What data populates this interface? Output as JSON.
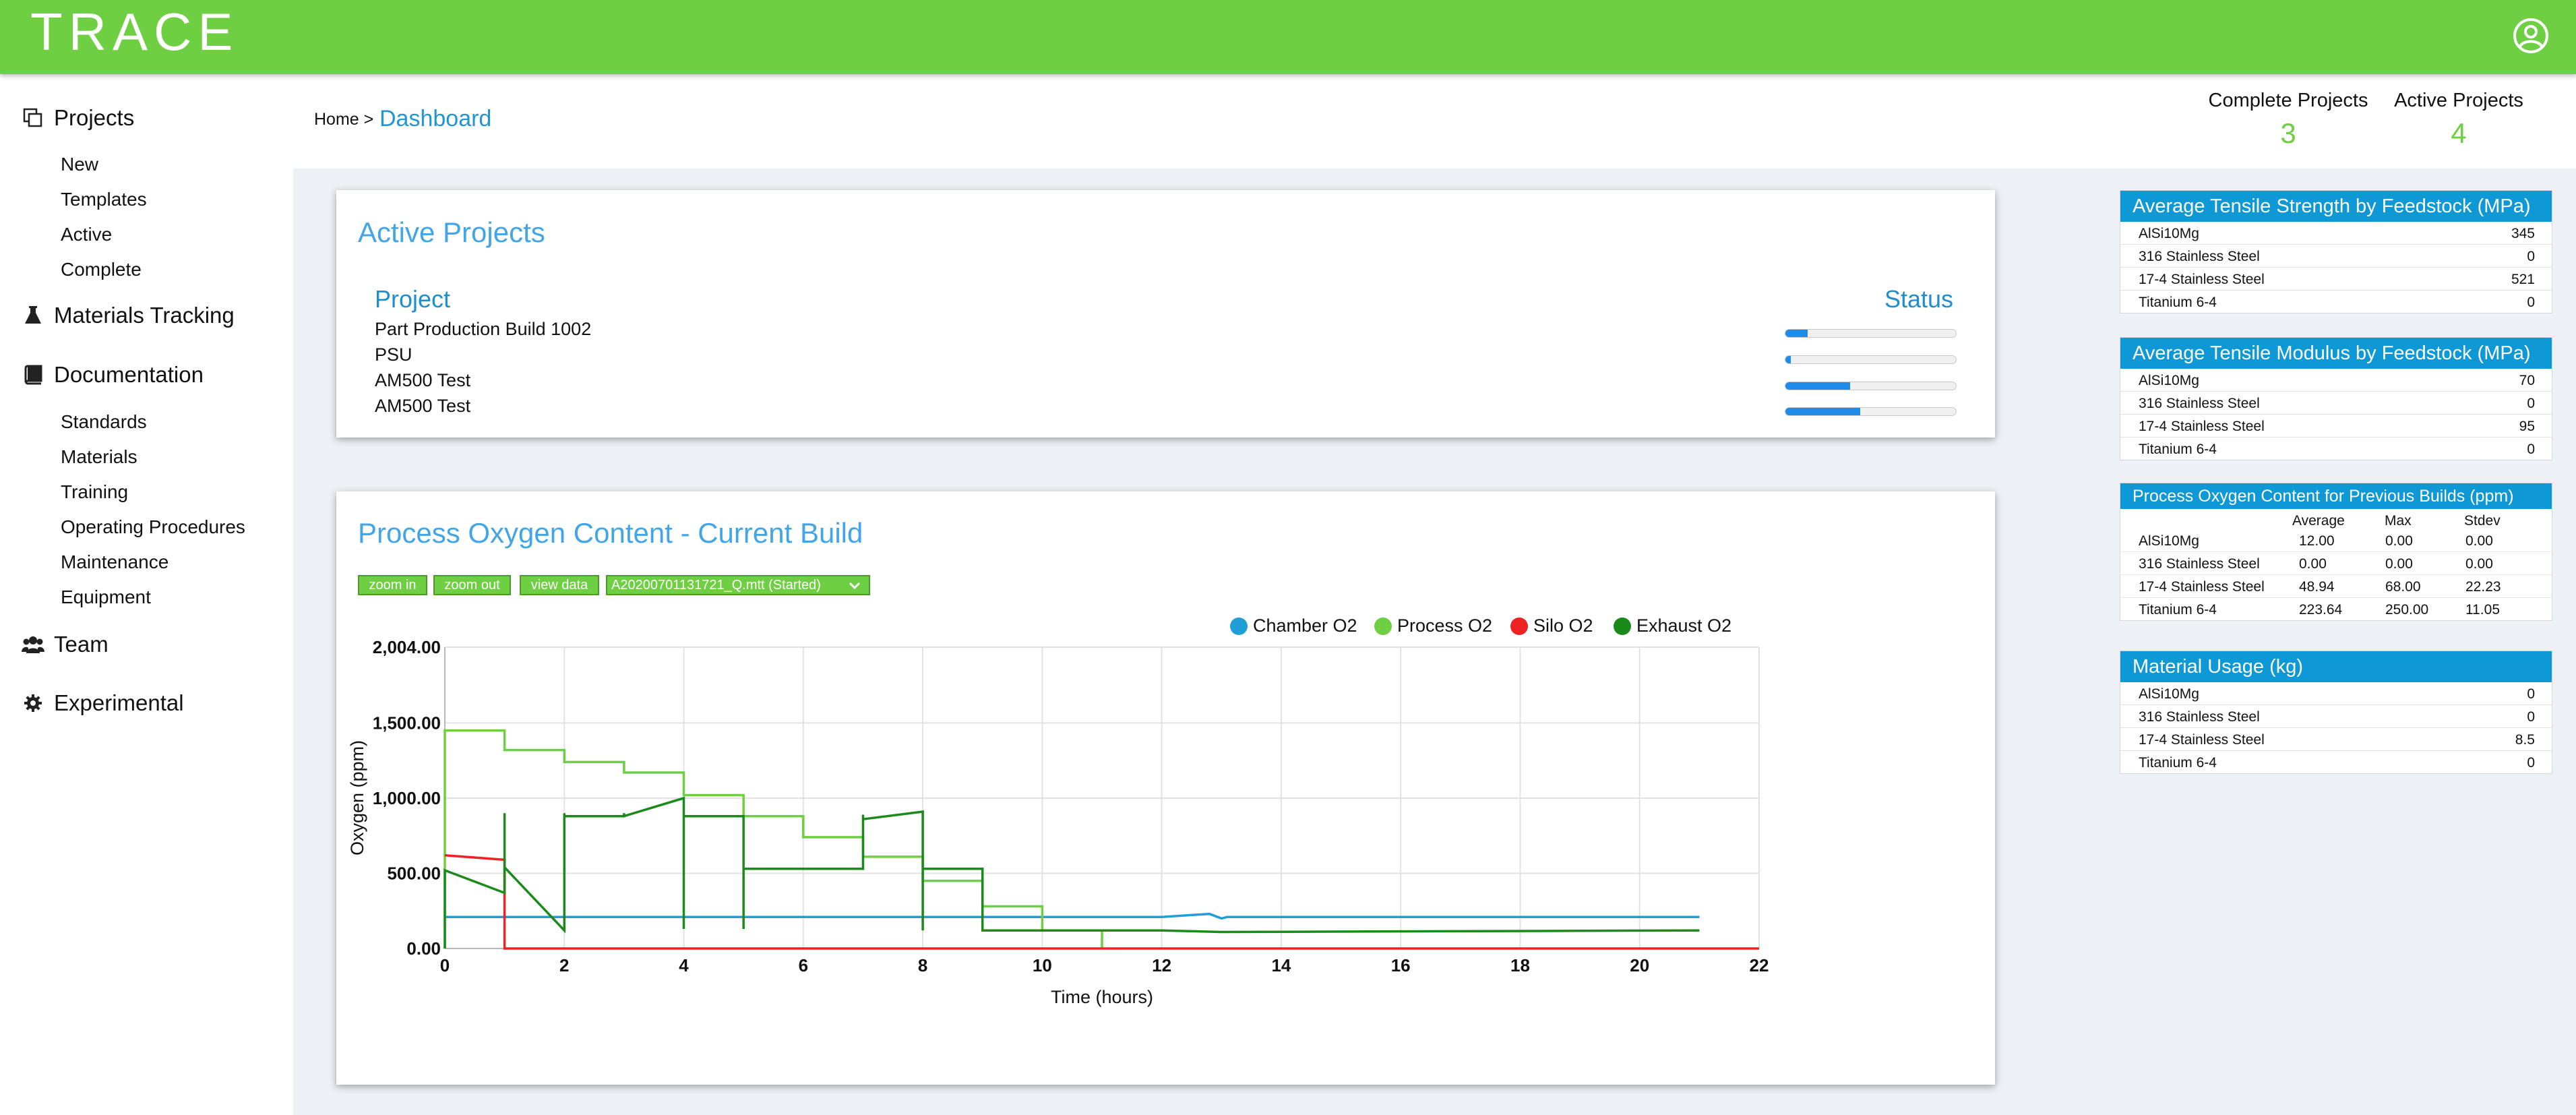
{
  "app": {
    "brand": "TRACE",
    "user_icon": "user-circle-icon"
  },
  "sidebar": {
    "sections": [
      {
        "label": "Projects",
        "icon": "copy-icon",
        "items": [
          "New",
          "Templates",
          "Active",
          "Complete"
        ]
      },
      {
        "label": "Materials Tracking",
        "icon": "flask-icon",
        "items": []
      },
      {
        "label": "Documentation",
        "icon": "book-icon",
        "items": [
          "Standards",
          "Materials",
          "Training",
          "Operating Procedures",
          "Maintenance",
          "Equipment"
        ]
      },
      {
        "label": "Team",
        "icon": "users-icon",
        "items": []
      },
      {
        "label": "Experimental",
        "icon": "gear-icon",
        "items": []
      }
    ]
  },
  "breadcrumb": {
    "home": "Home >",
    "current": "Dashboard"
  },
  "stats": [
    {
      "label": "Complete Projects",
      "value": "3"
    },
    {
      "label": "Active Projects",
      "value": "4"
    }
  ],
  "active_projects": {
    "title": "Active Projects",
    "col_project": "Project",
    "col_status": "Status",
    "rows": [
      {
        "name": "Part Production Build 1002",
        "progress": 0.13
      },
      {
        "name": "PSU",
        "progress": 0.03
      },
      {
        "name": "AM500 Test",
        "progress": 0.38
      },
      {
        "name": "AM500 Test",
        "progress": 0.44
      }
    ]
  },
  "oxygen_chart": {
    "title": "Process Oxygen Content - Current Build",
    "buttons": {
      "zoom_in": "zoom in",
      "zoom_out": "zoom out",
      "view_data": "view data"
    },
    "file_select": "A20200701131721_Q.mtt (Started)"
  },
  "chart_data": {
    "type": "line",
    "xlabel": "Time (hours)",
    "ylabel": "Oxygen (ppm)",
    "xlim": [
      0,
      22
    ],
    "ylim": [
      0,
      2004
    ],
    "x_ticks": [
      "0",
      "2",
      "4",
      "6",
      "8",
      "10",
      "12",
      "14",
      "16",
      "18",
      "20",
      "22"
    ],
    "y_ticks": [
      "0.00",
      "500.00",
      "1,000.00",
      "1,500.00",
      "2,004.00"
    ],
    "legend_position": "top-right",
    "grid": true,
    "series": [
      {
        "name": "Chamber O2",
        "color": "#1e9fd8",
        "points": [
          [
            0,
            210
          ],
          [
            1,
            210
          ],
          [
            2,
            210
          ],
          [
            4,
            210
          ],
          [
            6,
            210
          ],
          [
            8,
            210
          ],
          [
            10,
            210
          ],
          [
            12,
            210
          ],
          [
            12.8,
            230
          ],
          [
            13,
            200
          ],
          [
            13.1,
            210
          ],
          [
            14,
            210
          ],
          [
            16,
            210
          ],
          [
            18,
            210
          ],
          [
            20,
            210
          ],
          [
            21,
            210
          ]
        ]
      },
      {
        "name": "Process O2",
        "color": "#6fcf42",
        "points": [
          [
            0,
            0
          ],
          [
            0,
            1450
          ],
          [
            1,
            1450
          ],
          [
            1,
            1320
          ],
          [
            2,
            1320
          ],
          [
            2,
            1240
          ],
          [
            3,
            1240
          ],
          [
            3,
            1170
          ],
          [
            4,
            1170
          ],
          [
            4,
            1020
          ],
          [
            5,
            1020
          ],
          [
            5,
            880
          ],
          [
            6,
            880
          ],
          [
            6,
            740
          ],
          [
            7,
            740
          ],
          [
            7,
            610
          ],
          [
            8,
            610
          ],
          [
            8,
            450
          ],
          [
            9,
            450
          ],
          [
            9,
            280
          ],
          [
            10,
            280
          ],
          [
            10,
            120
          ],
          [
            11,
            120
          ],
          [
            11,
            0
          ]
        ]
      },
      {
        "name": "Silo O2",
        "color": "#ee2222",
        "points": [
          [
            0,
            620
          ],
          [
            1,
            590
          ],
          [
            1,
            0
          ],
          [
            22,
            0
          ]
        ]
      },
      {
        "name": "Exhaust O2",
        "color": "#1a8a1a",
        "points": [
          [
            0,
            0
          ],
          [
            0,
            520
          ],
          [
            1,
            370
          ],
          [
            1,
            900
          ],
          [
            1,
            540
          ],
          [
            2,
            120
          ],
          [
            2,
            900
          ],
          [
            2,
            880
          ],
          [
            3,
            880
          ],
          [
            3,
            900
          ],
          [
            3,
            880
          ],
          [
            4,
            1000
          ],
          [
            4,
            130
          ],
          [
            4,
            880
          ],
          [
            5,
            880
          ],
          [
            5,
            130
          ],
          [
            5,
            530
          ],
          [
            7,
            530
          ],
          [
            7,
            890
          ],
          [
            7,
            860
          ],
          [
            8,
            910
          ],
          [
            8,
            120
          ],
          [
            8,
            530
          ],
          [
            9,
            530
          ],
          [
            9,
            120
          ],
          [
            10,
            120
          ],
          [
            12,
            120
          ],
          [
            13,
            110
          ],
          [
            21,
            120
          ]
        ]
      }
    ]
  },
  "panels": {
    "tensile_strength": {
      "title": "Average Tensile Strength by Feedstock (MPa)",
      "rows": [
        [
          "AlSi10Mg",
          "345"
        ],
        [
          "316 Stainless Steel",
          "0"
        ],
        [
          "17-4 Stainless Steel",
          "521"
        ],
        [
          "Titanium 6-4",
          "0"
        ]
      ]
    },
    "tensile_modulus": {
      "title": "Average Tensile Modulus by Feedstock (MPa)",
      "rows": [
        [
          "AlSi10Mg",
          "70"
        ],
        [
          "316 Stainless Steel",
          "0"
        ],
        [
          "17-4 Stainless Steel",
          "95"
        ],
        [
          "Titanium 6-4",
          "0"
        ]
      ]
    },
    "oxygen_previous": {
      "title": "Process Oxygen Content for Previous Builds (ppm)",
      "headers": [
        "Average",
        "Max",
        "Stdev"
      ],
      "rows": [
        [
          "AlSi10Mg",
          "12.00",
          "0.00",
          "0.00"
        ],
        [
          "316 Stainless Steel",
          "0.00",
          "0.00",
          "0.00"
        ],
        [
          "17-4 Stainless Steel",
          "48.94",
          "68.00",
          "22.23"
        ],
        [
          "Titanium 6-4",
          "223.64",
          "250.00",
          "11.05"
        ]
      ]
    },
    "material_usage": {
      "title": "Material Usage (kg)",
      "rows": [
        [
          "AlSi10Mg",
          "0"
        ],
        [
          "316 Stainless Steel",
          "0"
        ],
        [
          "17-4 Stainless Steel",
          "8.5"
        ],
        [
          "Titanium 6-4",
          "0"
        ]
      ]
    }
  }
}
